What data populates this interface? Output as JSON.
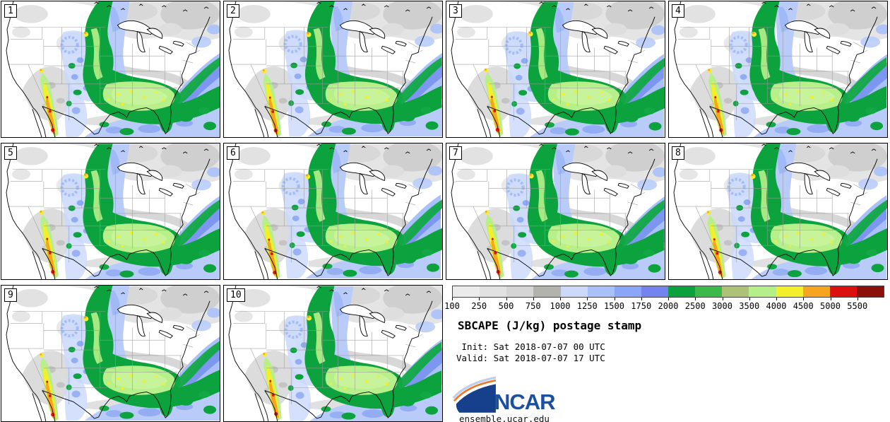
{
  "panels": [
    {
      "label": "1"
    },
    {
      "label": "2"
    },
    {
      "label": "3"
    },
    {
      "label": "4"
    },
    {
      "label": "5"
    },
    {
      "label": "6"
    },
    {
      "label": "7"
    },
    {
      "label": "8"
    },
    {
      "label": "9"
    },
    {
      "label": "10"
    }
  ],
  "legend": {
    "title": "SBCAPE (J/kg) postage stamp",
    "init_line": " Init: Sat 2018-07-07 00 UTC",
    "valid_line": "Valid: Sat 2018-07-07 17 UTC",
    "logo_text": "NCAR",
    "site_url": "ensemble.ucar.edu",
    "ticks": [
      "100",
      "250",
      "500",
      "750",
      "1000",
      "1250",
      "1500",
      "1750",
      "2000",
      "2500",
      "3000",
      "3500",
      "4000",
      "4500",
      "5000",
      "5500"
    ],
    "colors": [
      "#ebebeb",
      "#e2e2e2",
      "#d5d5d5",
      "#b3b3ad",
      "#ccd9fb",
      "#a8c2f9",
      "#8aa6f6",
      "#7583ee",
      "#0ca13c",
      "#3cb94b",
      "#adc278",
      "#b5ef87",
      "#f3ef2a",
      "#f7a521",
      "#dd1010",
      "#8b100c"
    ],
    "units": "J/kg"
  },
  "brand": {
    "ncar_blue": "#1d4f9f",
    "swoosh_orange": "#e8792c"
  }
}
